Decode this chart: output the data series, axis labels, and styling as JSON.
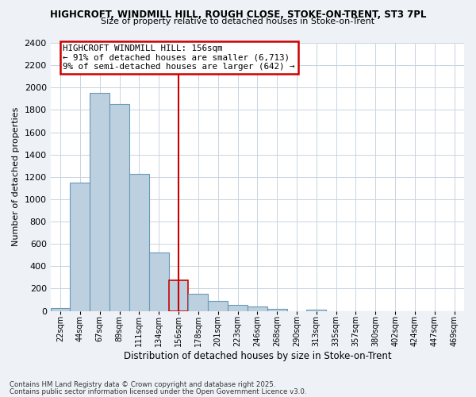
{
  "title1": "HIGHCROFT, WINDMILL HILL, ROUGH CLOSE, STOKE-ON-TRENT, ST3 7PL",
  "title2": "Size of property relative to detached houses in Stoke-on-Trent",
  "xlabel": "Distribution of detached houses by size in Stoke-on-Trent",
  "ylabel": "Number of detached properties",
  "categories": [
    "22sqm",
    "44sqm",
    "67sqm",
    "89sqm",
    "111sqm",
    "134sqm",
    "156sqm",
    "178sqm",
    "201sqm",
    "223sqm",
    "246sqm",
    "268sqm",
    "290sqm",
    "313sqm",
    "335sqm",
    "357sqm",
    "380sqm",
    "402sqm",
    "424sqm",
    "447sqm",
    "469sqm"
  ],
  "values": [
    25,
    1150,
    1950,
    1850,
    1225,
    525,
    275,
    155,
    90,
    50,
    40,
    15,
    0,
    10,
    0,
    0,
    0,
    0,
    0,
    0,
    0
  ],
  "highlight_index": 6,
  "bar_color": "#bdd0e0",
  "bar_edge_color": "#6899b8",
  "highlight_bar_edge_color": "#cc0000",
  "annotation_text": "HIGHCROFT WINDMILL HILL: 156sqm\n← 91% of detached houses are smaller (6,713)\n9% of semi-detached houses are larger (642) →",
  "annotation_box_edge": "#cc0000",
  "vline_color": "#cc0000",
  "vline_index": 6,
  "ylim": [
    0,
    2400
  ],
  "yticks": [
    0,
    200,
    400,
    600,
    800,
    1000,
    1200,
    1400,
    1600,
    1800,
    2000,
    2200,
    2400
  ],
  "footer1": "Contains HM Land Registry data © Crown copyright and database right 2025.",
  "footer2": "Contains public sector information licensed under the Open Government Licence v3.0.",
  "bg_color": "#eef2f7",
  "plot_bg_color": "#ffffff",
  "grid_color": "#c8d4e0"
}
